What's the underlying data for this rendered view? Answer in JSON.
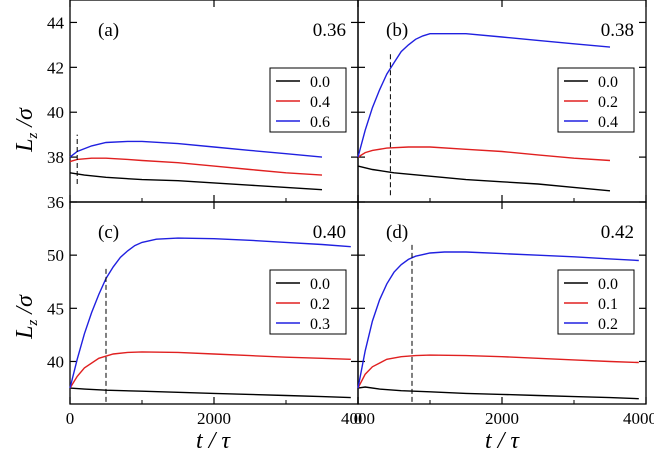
{
  "figure": {
    "ylabel": "Lz /σ",
    "xlabel": "t / τ"
  },
  "chart_data": [
    {
      "type": "line",
      "id": "a",
      "panel_label": "(a)",
      "corner_value": "0.36",
      "xlim": [
        0,
        4000
      ],
      "ylim": [
        36,
        45
      ],
      "xticks": [
        0,
        2000,
        4000
      ],
      "yticks": [
        36,
        38,
        40,
        42,
        44
      ],
      "ytick_labels": [
        "36",
        "38",
        "40",
        "42",
        "44"
      ],
      "xtick_labels": [],
      "dashed_x": 100,
      "dashed_y_range": [
        36.8,
        39.0
      ],
      "legend": [
        "0.0",
        "0.4",
        "0.6"
      ],
      "series": [
        {
          "name": "0.0",
          "color": "#000000",
          "x": [
            0,
            200,
            500,
            1000,
            1500,
            2000,
            2500,
            3000,
            3500
          ],
          "y": [
            37.3,
            37.2,
            37.1,
            37.0,
            36.95,
            36.85,
            36.75,
            36.65,
            36.55
          ]
        },
        {
          "name": "0.4",
          "color": "#e02020",
          "x": [
            0,
            100,
            300,
            500,
            800,
            1000,
            1500,
            2000,
            2500,
            3000,
            3500
          ],
          "y": [
            37.8,
            37.9,
            37.95,
            37.95,
            37.9,
            37.85,
            37.75,
            37.6,
            37.45,
            37.3,
            37.2
          ]
        },
        {
          "name": "0.6",
          "color": "#2020e0",
          "x": [
            0,
            100,
            300,
            500,
            800,
            1000,
            1500,
            2000,
            2500,
            3000,
            3500
          ],
          "y": [
            38.0,
            38.25,
            38.5,
            38.65,
            38.7,
            38.7,
            38.6,
            38.45,
            38.3,
            38.15,
            38.0
          ]
        }
      ]
    },
    {
      "type": "line",
      "id": "b",
      "panel_label": "(b)",
      "corner_value": "0.38",
      "xlim": [
        0,
        4000
      ],
      "ylim": [
        36,
        45
      ],
      "xticks": [
        0,
        2000,
        4000
      ],
      "yticks": [
        36,
        38,
        40,
        42,
        44
      ],
      "ytick_labels": [],
      "xtick_labels": [],
      "dashed_x": 450,
      "dashed_y_range": [
        36.3,
        42.6
      ],
      "legend": [
        "0.0",
        "0.2",
        "0.4"
      ],
      "series": [
        {
          "name": "0.0",
          "color": "#000000",
          "x": [
            0,
            200,
            500,
            1000,
            1500,
            2000,
            2500,
            3000,
            3500
          ],
          "y": [
            37.6,
            37.45,
            37.3,
            37.15,
            37.0,
            36.9,
            36.8,
            36.65,
            36.5
          ]
        },
        {
          "name": "0.2",
          "color": "#e02020",
          "x": [
            0,
            100,
            200,
            400,
            700,
            1000,
            1500,
            2000,
            2500,
            3000,
            3500
          ],
          "y": [
            38.0,
            38.2,
            38.3,
            38.4,
            38.45,
            38.45,
            38.35,
            38.25,
            38.1,
            37.95,
            37.85
          ]
        },
        {
          "name": "0.4",
          "color": "#2020e0",
          "x": [
            0,
            100,
            200,
            300,
            400,
            500,
            600,
            700,
            800,
            900,
            1000,
            1200,
            1500,
            2000,
            2500,
            3000,
            3500
          ],
          "y": [
            38.0,
            39.2,
            40.2,
            41.0,
            41.7,
            42.2,
            42.7,
            43.0,
            43.25,
            43.4,
            43.5,
            43.5,
            43.5,
            43.35,
            43.2,
            43.05,
            42.9
          ]
        }
      ]
    },
    {
      "type": "line",
      "id": "c",
      "panel_label": "(c)",
      "corner_value": "0.40",
      "xlim": [
        0,
        4000
      ],
      "ylim": [
        36,
        55
      ],
      "xticks": [
        0,
        2000,
        4000
      ],
      "yticks": [
        40,
        45,
        50
      ],
      "ytick_labels": [
        "40",
        "45",
        "50"
      ],
      "xtick_labels": [
        "0",
        "2000",
        "4000"
      ],
      "dashed_x": 500,
      "dashed_y_range": [
        36.2,
        48.8
      ],
      "legend": [
        "0.0",
        "0.2",
        "0.3"
      ],
      "series": [
        {
          "name": "0.0",
          "color": "#000000",
          "x": [
            0,
            200,
            500,
            1000,
            1500,
            2000,
            2500,
            3000,
            3500,
            3900
          ],
          "y": [
            37.5,
            37.4,
            37.3,
            37.2,
            37.1,
            37.0,
            36.9,
            36.8,
            36.7,
            36.6
          ]
        },
        {
          "name": "0.2",
          "color": "#e02020",
          "x": [
            0,
            100,
            200,
            400,
            600,
            800,
            1000,
            1500,
            2000,
            2500,
            3000,
            3500,
            3900
          ],
          "y": [
            37.5,
            38.6,
            39.4,
            40.3,
            40.7,
            40.85,
            40.9,
            40.85,
            40.7,
            40.55,
            40.4,
            40.3,
            40.2
          ]
        },
        {
          "name": "0.3",
          "color": "#2020e0",
          "x": [
            0,
            100,
            200,
            300,
            400,
            500,
            600,
            700,
            800,
            900,
            1000,
            1200,
            1500,
            2000,
            2500,
            3000,
            3500,
            3900
          ],
          "y": [
            37.5,
            40.2,
            42.6,
            44.6,
            46.3,
            47.8,
            48.9,
            49.8,
            50.4,
            50.9,
            51.2,
            51.5,
            51.6,
            51.55,
            51.4,
            51.2,
            51.0,
            50.8
          ]
        }
      ]
    },
    {
      "type": "line",
      "id": "d",
      "panel_label": "(d)",
      "corner_value": "0.42",
      "xlim": [
        0,
        4000
      ],
      "ylim": [
        36,
        55
      ],
      "xticks": [
        0,
        2000,
        4000
      ],
      "yticks": [
        40,
        45,
        50
      ],
      "ytick_labels": [],
      "xtick_labels": [
        "0",
        "2000",
        "4000"
      ],
      "dashed_x": 750,
      "dashed_y_range": [
        36.2,
        51.0
      ],
      "legend": [
        "0.0",
        "0.1",
        "0.2"
      ],
      "series": [
        {
          "name": "0.0",
          "color": "#000000",
          "x": [
            0,
            100,
            300,
            600,
            1000,
            1500,
            2000,
            2500,
            3000,
            3500,
            3900
          ],
          "y": [
            37.5,
            37.6,
            37.4,
            37.25,
            37.15,
            37.0,
            36.9,
            36.8,
            36.7,
            36.6,
            36.5
          ]
        },
        {
          "name": "0.1",
          "color": "#e02020",
          "x": [
            0,
            100,
            200,
            400,
            600,
            800,
            1000,
            1500,
            2000,
            2500,
            3000,
            3500,
            3900
          ],
          "y": [
            37.5,
            38.8,
            39.5,
            40.2,
            40.45,
            40.55,
            40.6,
            40.55,
            40.45,
            40.3,
            40.15,
            40.0,
            39.9
          ]
        },
        {
          "name": "0.2",
          "color": "#2020e0",
          "x": [
            0,
            100,
            200,
            300,
            400,
            500,
            600,
            700,
            800,
            1000,
            1200,
            1500,
            2000,
            2500,
            3000,
            3500,
            3900
          ],
          "y": [
            37.5,
            41.0,
            43.8,
            45.8,
            47.3,
            48.4,
            49.1,
            49.6,
            49.9,
            50.2,
            50.3,
            50.3,
            50.15,
            50.0,
            49.85,
            49.65,
            49.5
          ]
        }
      ]
    }
  ]
}
